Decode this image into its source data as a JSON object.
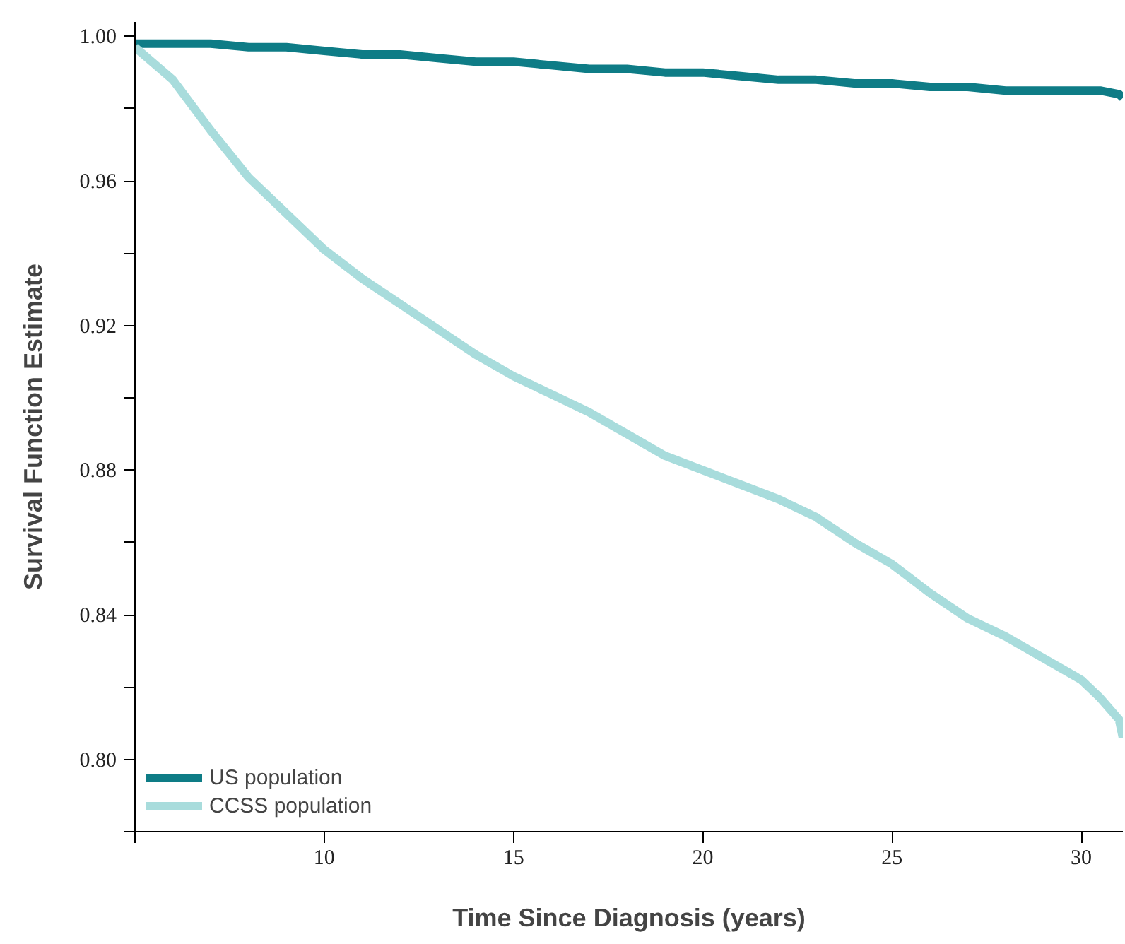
{
  "chart_data": {
    "type": "line",
    "xlabel": "Time Since Diagnosis (years)",
    "ylabel": "Survival Function Estimate",
    "xlim": [
      5,
      31.1
    ],
    "ylim": [
      0.78,
      1.004
    ],
    "xticks": [
      {
        "value": 5,
        "label": null
      },
      10,
      15,
      20,
      25,
      30
    ],
    "yticks": [
      {
        "value": 0.78,
        "label": null
      },
      {
        "value": 0.8,
        "label": "0.80"
      },
      {
        "value": 0.82,
        "label": null
      },
      {
        "value": 0.84,
        "label": "0.84"
      },
      {
        "value": 0.86,
        "label": null
      },
      {
        "value": 0.88,
        "label": "0.88"
      },
      {
        "value": 0.9,
        "label": null
      },
      {
        "value": 0.92,
        "label": "0.92"
      },
      {
        "value": 0.94,
        "label": null
      },
      {
        "value": 0.96,
        "label": "0.96"
      },
      {
        "value": 0.98,
        "label": null
      },
      {
        "value": 1.0,
        "label": "1.00"
      }
    ],
    "grid": false,
    "legend": "bottom left",
    "marker": "none",
    "line_style": "solid",
    "x": [
      5,
      6,
      7,
      8,
      9,
      10,
      11,
      12,
      13,
      14,
      15,
      16,
      17,
      18,
      19,
      20,
      21,
      22,
      23,
      24,
      25,
      26,
      27,
      28,
      29,
      30,
      30.5,
      31,
      31.1
    ],
    "series": [
      {
        "name": "US population",
        "color": "#0e7c86",
        "values": [
          0.998,
          0.998,
          0.998,
          0.997,
          0.997,
          0.996,
          0.995,
          0.995,
          0.994,
          0.993,
          0.993,
          0.992,
          0.991,
          0.991,
          0.99,
          0.99,
          0.989,
          0.988,
          0.988,
          0.987,
          0.987,
          0.986,
          0.986,
          0.985,
          0.985,
          0.985,
          0.985,
          0.984,
          0.983
        ]
      },
      {
        "name": "CCSS population",
        "color": "#a8dcdc",
        "values": [
          0.997,
          0.988,
          0.974,
          0.961,
          0.951,
          0.941,
          0.933,
          0.926,
          0.919,
          0.912,
          0.906,
          0.901,
          0.896,
          0.89,
          0.884,
          0.88,
          0.876,
          0.872,
          0.867,
          0.86,
          0.854,
          0.846,
          0.839,
          0.834,
          0.828,
          0.822,
          0.817,
          0.811,
          0.806
        ]
      }
    ]
  }
}
